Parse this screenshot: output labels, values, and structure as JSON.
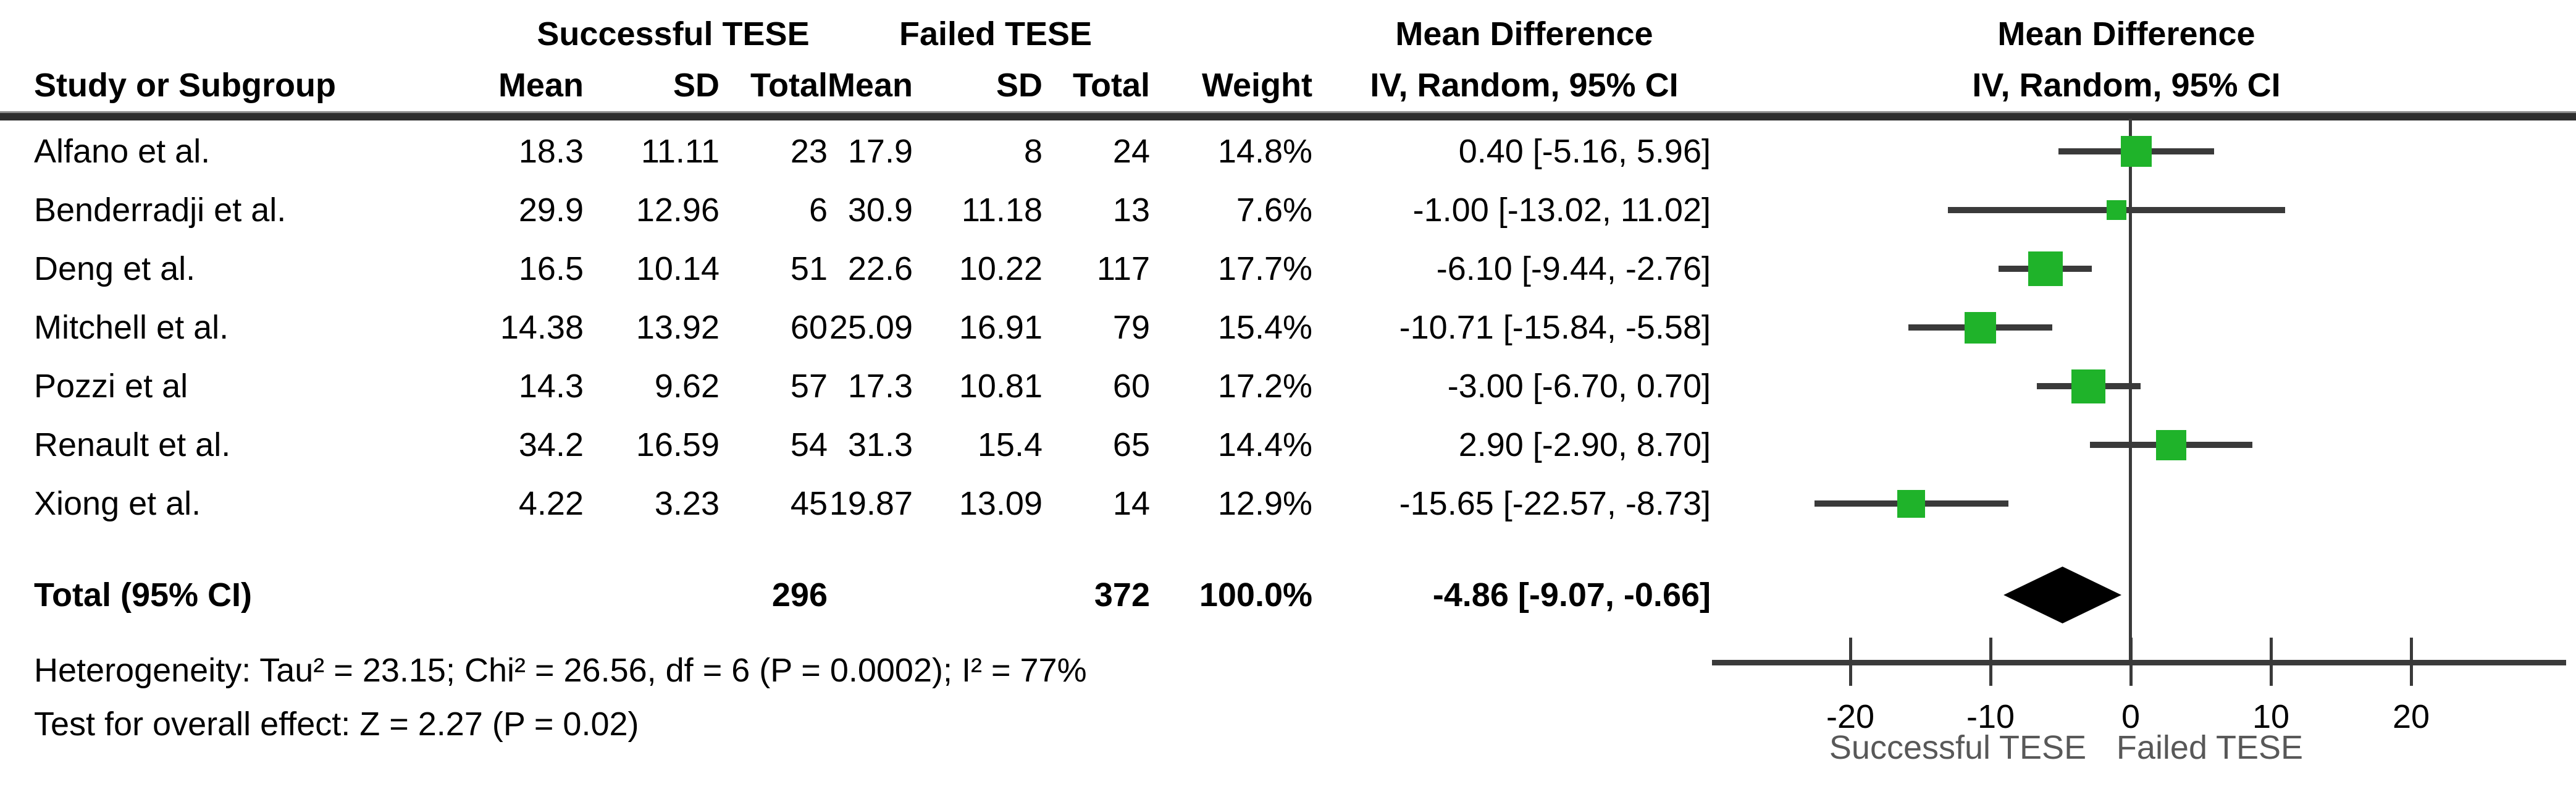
{
  "table": {
    "title_row": {
      "group1": "Successful TESE",
      "group2": "Failed TESE",
      "md_col": "Mean Difference",
      "md_plot": "Mean Difference"
    },
    "subtitle_row": {
      "study": "Study or Subgroup",
      "mean1": "Mean",
      "sd1": "SD",
      "total1": "Total",
      "mean2": "Mean",
      "sd2": "SD",
      "total2": "Total",
      "weight": "Weight",
      "ci_col": "IV, Random, 95% CI",
      "ci_plot": "IV, Random, 95% CI"
    },
    "rows": [
      {
        "study": "Alfano et al.",
        "mean1": "18.3",
        "sd1": "11.11",
        "total1": "23",
        "mean2": "17.9",
        "sd2": "8",
        "total2": "24",
        "weight": "14.8%",
        "ci": "0.40 [-5.16, 5.96]",
        "est": 0.4,
        "lo": -5.16,
        "hi": 5.96,
        "w": 14.8
      },
      {
        "study": "Benderradji et al.",
        "mean1": "29.9",
        "sd1": "12.96",
        "total1": "6",
        "mean2": "30.9",
        "sd2": "11.18",
        "total2": "13",
        "weight": "7.6%",
        "ci": "-1.00 [-13.02, 11.02]",
        "est": -1.0,
        "lo": -13.02,
        "hi": 11.02,
        "w": 7.6
      },
      {
        "study": "Deng et al.",
        "mean1": "16.5",
        "sd1": "10.14",
        "total1": "51",
        "mean2": "22.6",
        "sd2": "10.22",
        "total2": "117",
        "weight": "17.7%",
        "ci": "-6.10 [-9.44, -2.76]",
        "est": -6.1,
        "lo": -9.44,
        "hi": -2.76,
        "w": 17.7
      },
      {
        "study": "Mitchell et al.",
        "mean1": "14.38",
        "sd1": "13.92",
        "total1": "60",
        "mean2": "25.09",
        "sd2": "16.91",
        "total2": "79",
        "weight": "15.4%",
        "ci": "-10.71 [-15.84, -5.58]",
        "est": -10.71,
        "lo": -15.84,
        "hi": -5.58,
        "w": 15.4
      },
      {
        "study": "Pozzi et al",
        "mean1": "14.3",
        "sd1": "9.62",
        "total1": "57",
        "mean2": "17.3",
        "sd2": "10.81",
        "total2": "60",
        "weight": "17.2%",
        "ci": "-3.00 [-6.70, 0.70]",
        "est": -3.0,
        "lo": -6.7,
        "hi": 0.7,
        "w": 17.2
      },
      {
        "study": "Renault et al.",
        "mean1": "34.2",
        "sd1": "16.59",
        "total1": "54",
        "mean2": "31.3",
        "sd2": "15.4",
        "total2": "65",
        "weight": "14.4%",
        "ci": "2.90 [-2.90, 8.70]",
        "est": 2.9,
        "lo": -2.9,
        "hi": 8.7,
        "w": 14.4
      },
      {
        "study": "Xiong et al.",
        "mean1": "4.22",
        "sd1": "3.23",
        "total1": "45",
        "mean2": "19.87",
        "sd2": "13.09",
        "total2": "14",
        "weight": "12.9%",
        "ci": "-15.65 [-22.57, -8.73]",
        "est": -15.65,
        "lo": -22.57,
        "hi": -8.73,
        "w": 12.9
      }
    ],
    "total_row": {
      "label": "Total (95% CI)",
      "total1": "296",
      "total2": "372",
      "weight": "100.0%",
      "ci": "-4.86 [-9.07, -0.66]",
      "est": -4.86,
      "lo": -9.07,
      "hi": -0.66
    },
    "footnotes": {
      "heterogeneity": "Heterogeneity: Tau² = 23.15; Chi² = 26.56, df = 6 (P = 0.0002); I² = 77%",
      "overall_effect": "Test for overall effect: Z = 2.27 (P = 0.02)"
    }
  },
  "axis": {
    "ticks": [
      -20,
      -10,
      0,
      10,
      20
    ],
    "caption_left": "Successful TESE",
    "caption_right": "Failed TESE"
  },
  "colors": {
    "marker_green": "#1fb32a",
    "line_dark": "#3a3a3a",
    "diamond_black": "#000000",
    "caption_gray": "#585858"
  },
  "chart_data": {
    "type": "scatter",
    "subtype": "forest_plot",
    "title": "Mean Difference",
    "model": "IV, Random, 95% CI",
    "group1_label": "Successful TESE",
    "group2_label": "Failed TESE",
    "xlabel_left": "Successful TESE",
    "xlabel_right": "Failed TESE",
    "x_ticks": [
      -20,
      -10,
      0,
      10,
      20
    ],
    "xlim": [
      -30,
      31
    ],
    "studies": [
      {
        "name": "Alfano et al.",
        "mean1": 18.3,
        "sd1": 11.11,
        "n1": 23,
        "mean2": 17.9,
        "sd2": 8,
        "n2": 24,
        "weight_pct": 14.8,
        "md": 0.4,
        "ci_low": -5.16,
        "ci_high": 5.96
      },
      {
        "name": "Benderradji et al.",
        "mean1": 29.9,
        "sd1": 12.96,
        "n1": 6,
        "mean2": 30.9,
        "sd2": 11.18,
        "n2": 13,
        "weight_pct": 7.6,
        "md": -1.0,
        "ci_low": -13.02,
        "ci_high": 11.02
      },
      {
        "name": "Deng et al.",
        "mean1": 16.5,
        "sd1": 10.14,
        "n1": 51,
        "mean2": 22.6,
        "sd2": 10.22,
        "n2": 117,
        "weight_pct": 17.7,
        "md": -6.1,
        "ci_low": -9.44,
        "ci_high": -2.76
      },
      {
        "name": "Mitchell et al.",
        "mean1": 14.38,
        "sd1": 13.92,
        "n1": 60,
        "mean2": 25.09,
        "sd2": 16.91,
        "n2": 79,
        "weight_pct": 15.4,
        "md": -10.71,
        "ci_low": -15.84,
        "ci_high": -5.58
      },
      {
        "name": "Pozzi et al",
        "mean1": 14.3,
        "sd1": 9.62,
        "n1": 57,
        "mean2": 17.3,
        "sd2": 10.81,
        "n2": 60,
        "weight_pct": 17.2,
        "md": -3.0,
        "ci_low": -6.7,
        "ci_high": 0.7
      },
      {
        "name": "Renault et al.",
        "mean1": 34.2,
        "sd1": 16.59,
        "n1": 54,
        "mean2": 31.3,
        "sd2": 15.4,
        "n2": 65,
        "weight_pct": 14.4,
        "md": 2.9,
        "ci_low": -2.9,
        "ci_high": 8.7
      },
      {
        "name": "Xiong et al.",
        "mean1": 4.22,
        "sd1": 3.23,
        "n1": 45,
        "mean2": 19.87,
        "sd2": 13.09,
        "n2": 14,
        "weight_pct": 12.9,
        "md": -15.65,
        "ci_low": -22.57,
        "ci_high": -8.73
      }
    ],
    "total": {
      "label": "Total (95% CI)",
      "n1": 296,
      "n2": 372,
      "weight_pct": 100.0,
      "md": -4.86,
      "ci_low": -9.07,
      "ci_high": -0.66
    },
    "heterogeneity": {
      "tau2": 23.15,
      "chi2": 26.56,
      "df": 6,
      "p": 0.0002,
      "i2_pct": 77
    },
    "overall_effect": {
      "z": 2.27,
      "p": 0.02
    }
  }
}
